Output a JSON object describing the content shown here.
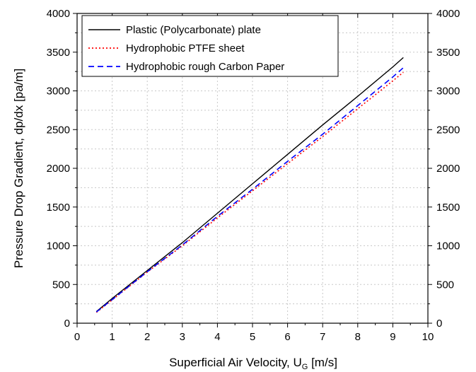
{
  "chart_data": {
    "type": "line",
    "xlabel": "Superficial Air Velocity, U",
    "xlabel_sub": "G",
    "xlabel_unit": " [m/s]",
    "ylabel": "Pressure Drop Gradient, dp/dx [pa/m]",
    "xlim": [
      0,
      10
    ],
    "ylim": [
      0,
      4000
    ],
    "xticks": [
      "0",
      "1",
      "2",
      "3",
      "4",
      "5",
      "6",
      "7",
      "8",
      "9",
      "10"
    ],
    "yticks": [
      "0",
      "500",
      "1000",
      "1500",
      "2000",
      "2500",
      "3000",
      "3500",
      "4000"
    ],
    "y2ticks": [
      "0",
      "500",
      "1000",
      "1500",
      "2000",
      "2500",
      "3000",
      "3500",
      "4000"
    ],
    "grid": true,
    "legend_position": "top-left",
    "series": [
      {
        "name": "Plastic (Polycarbonate) plate",
        "color": "#000000",
        "style": "solid",
        "x": [
          0.55,
          1,
          2,
          3,
          4,
          5,
          6,
          7,
          8,
          9,
          9.3
        ],
        "y": [
          150,
          320,
          680,
          1040,
          1420,
          1800,
          2180,
          2560,
          2930,
          3310,
          3430
        ]
      },
      {
        "name": "Hydrophobic PTFE sheet",
        "color": "#ff0000",
        "style": "dotted",
        "x": [
          0.55,
          1,
          2,
          3,
          4,
          5,
          6,
          7,
          8,
          9,
          9.3
        ],
        "y": [
          140,
          300,
          660,
          1000,
          1360,
          1710,
          2060,
          2410,
          2770,
          3130,
          3240
        ]
      },
      {
        "name": "Hydrophobic rough Carbon Paper",
        "color": "#0000ff",
        "style": "dashed",
        "x": [
          0.55,
          1,
          2,
          3,
          4,
          5,
          6,
          7,
          8,
          9,
          9.3
        ],
        "y": [
          145,
          305,
          665,
          1010,
          1380,
          1730,
          2090,
          2440,
          2810,
          3180,
          3300
        ]
      }
    ]
  }
}
